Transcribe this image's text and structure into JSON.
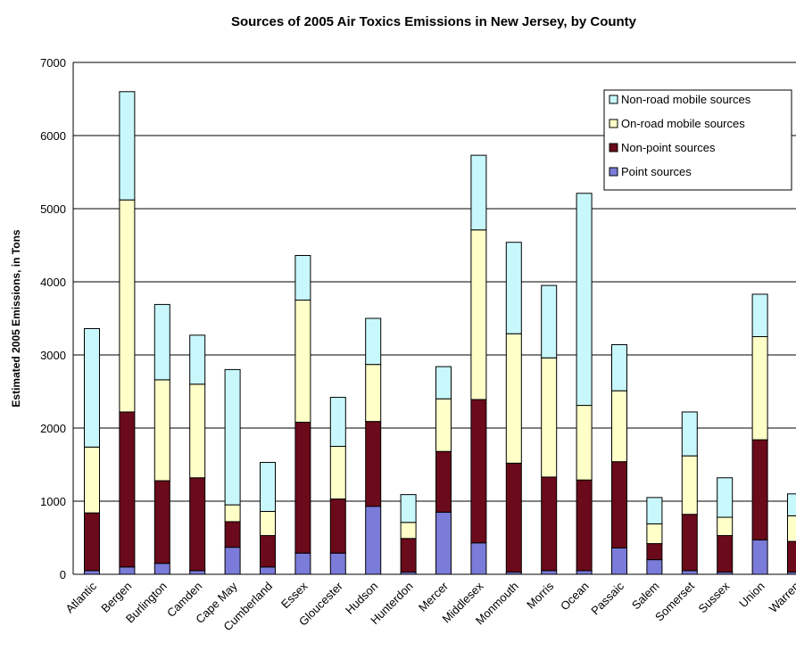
{
  "chart_data": {
    "type": "bar",
    "stacked": true,
    "title": "Sources of 2005 Air Toxics Emissions in New Jersey, by County",
    "xlabel": "",
    "ylabel": "Estimated 2005 Emissions, in Tons",
    "ylim": [
      0,
      7000
    ],
    "yticks": [
      "0",
      "1000",
      "2000",
      "3000",
      "4000",
      "5000",
      "6000",
      "7000"
    ],
    "grid": true,
    "legend_position": "top-right",
    "categories": [
      "Atlantic",
      "Bergen",
      "Burlington",
      "Camden",
      "Cape May",
      "Cumberland",
      "Essex",
      "Gloucester",
      "Hudson",
      "Hunterdon",
      "Mercer",
      "Middlesex",
      "Monmouth",
      "Morris",
      "Ocean",
      "Passaic",
      "Salem",
      "Somerset",
      "Sussex",
      "Union",
      "Warren"
    ],
    "series": [
      {
        "name": "Point sources",
        "color": "#7b7bd9",
        "values": [
          50,
          100,
          150,
          50,
          370,
          100,
          290,
          290,
          930,
          30,
          850,
          430,
          30,
          50,
          50,
          360,
          200,
          50,
          30,
          470,
          30
        ]
      },
      {
        "name": "Non-point sources",
        "color": "#6b0a1a",
        "values": [
          790,
          2120,
          1130,
          1270,
          350,
          430,
          1790,
          740,
          1160,
          460,
          830,
          1960,
          1490,
          1280,
          1240,
          1180,
          220,
          770,
          500,
          1370,
          420
        ]
      },
      {
        "name": "On-road mobile sources",
        "color": "#ffffc8",
        "values": [
          900,
          2900,
          1380,
          1280,
          230,
          330,
          1670,
          720,
          780,
          220,
          720,
          2320,
          1770,
          1630,
          1020,
          970,
          270,
          800,
          250,
          1410,
          350
        ]
      },
      {
        "name": "Non-road mobile sources",
        "color": "#c8f8fc",
        "values": [
          1620,
          1480,
          1030,
          670,
          1850,
          670,
          610,
          670,
          630,
          380,
          440,
          1020,
          1250,
          990,
          2900,
          630,
          360,
          600,
          540,
          580,
          300
        ]
      }
    ],
    "legend_order": [
      "Non-road mobile sources",
      "On-road mobile sources",
      "Non-point sources",
      "Point sources"
    ]
  }
}
